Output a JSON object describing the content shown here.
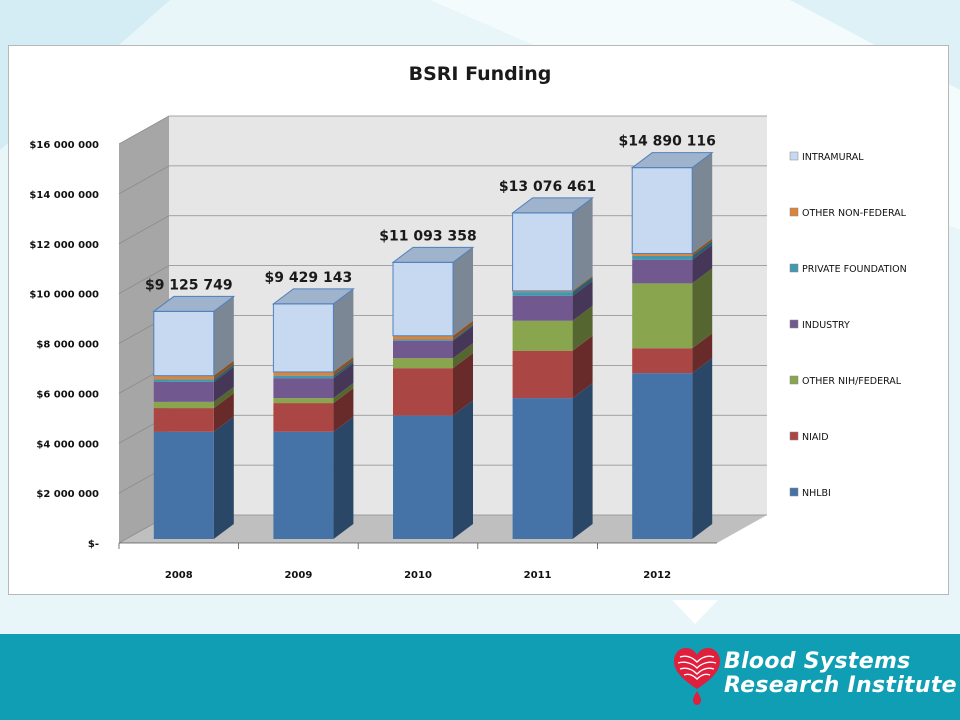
{
  "chart_data": {
    "type": "bar",
    "stacked": true,
    "three_d": true,
    "title": "BSRI Funding",
    "categories": [
      "2008",
      "2009",
      "2010",
      "2011",
      "2012"
    ],
    "series": [
      {
        "name": "NHLBI",
        "color": "#4572a7",
        "values": [
          4300000,
          4300000,
          4950000,
          5650000,
          6650000
        ]
      },
      {
        "name": "NIAID",
        "color": "#aa4643",
        "values": [
          950000,
          1150000,
          1900000,
          1900000,
          1000000
        ]
      },
      {
        "name": "OTHER NIH/FEDERAL",
        "color": "#89a54e",
        "values": [
          250000,
          200000,
          400000,
          1200000,
          2600000
        ]
      },
      {
        "name": "INDUSTRY",
        "color": "#71588f",
        "values": [
          800000,
          800000,
          700000,
          1000000,
          950000
        ]
      },
      {
        "name": "PRIVATE FOUNDATION",
        "color": "#4198af",
        "values": [
          100000,
          100000,
          50000,
          150000,
          150000
        ]
      },
      {
        "name": "OTHER NON-FEDERAL",
        "color": "#db843d",
        "values": [
          150000,
          150000,
          150000,
          50000,
          100000
        ]
      },
      {
        "name": "INTRAMURAL",
        "color": "#c6d9f1",
        "values": [
          2575749,
          2729143,
          2943358,
          3126461,
          3440116
        ]
      }
    ],
    "totals": [
      "$9 125 749",
      "$9 429 143",
      "$11 093 358",
      "$13 076 461",
      "$14 890 116"
    ],
    "totals_values": [
      9125749,
      9429143,
      11093358,
      13076461,
      14890116
    ],
    "ylim": [
      0,
      16000000
    ],
    "ytick_values": [
      0,
      2000000,
      4000000,
      6000000,
      8000000,
      10000000,
      12000000,
      14000000,
      16000000
    ],
    "yticks": [
      "$-",
      "$2 000 000",
      "$4 000 000",
      "$6 000 000",
      "$8 000 000",
      "$10 000 000",
      "$12 000 000",
      "$14 000 000",
      "$16 000 000"
    ],
    "xlabel": "",
    "ylabel": "",
    "grid": true,
    "legend_position": "right",
    "legend_order": "top-to-bottom reversed (INTRAMURAL first)"
  },
  "logo": {
    "line1": "Blood Systems",
    "line2": "Research Institute",
    "brand_color": "#0f9eb4",
    "mark_color": "#e01f3d"
  }
}
